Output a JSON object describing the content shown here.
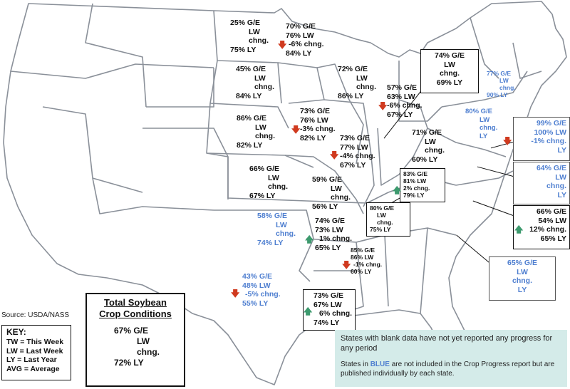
{
  "source": "Source: USDA/NASS",
  "key": {
    "title": "KEY:",
    "items": [
      "TW = This Week",
      "LW = Last Week",
      "LY = Last Year",
      "AVG = Average"
    ]
  },
  "total": {
    "title_line1": "Total Soybean",
    "title_line2": "Crop Conditions",
    "ge": "67% G/E",
    "lw": "LW",
    "chng": "chng.",
    "ly": "72% LY"
  },
  "notes": {
    "line1": "States with blank data have not yet reported any progress for any period",
    "line2_pre": "States in ",
    "line2_blue": "BLUE",
    "line2_post": " are not included in the Crop Progress report but are published individually by each state."
  },
  "colors": {
    "arrow_down": "#d03a1f",
    "arrow_up": "#3d9a6e",
    "blue_state": "#4f7fd0",
    "notes_bg": "#d4ebe9"
  },
  "states": {
    "nd": {
      "ge": "25% G/E",
      "lw": "LW",
      "chng": "chng.",
      "ly": "75% LY"
    },
    "mn": {
      "ge": "70% G/E",
      "lw": "76% LW",
      "chng": "-6% chng.",
      "ly": "84% LY",
      "arrow": "down"
    },
    "sd": {
      "ge": "45% G/E",
      "lw": "LW",
      "chng": "chng.",
      "ly": "84% LY"
    },
    "wi": {
      "ge": "72% G/E",
      "lw": "LW",
      "chng": "chng.",
      "ly": "86% LY"
    },
    "mi": {
      "ge": "57% G/E",
      "lw": "63% LW",
      "chng": "-6% chng.",
      "ly": "67% LY",
      "arrow": "down"
    },
    "ne": {
      "ge": "86% G/E",
      "lw": "LW",
      "chng": "chng.",
      "ly": "82% LY"
    },
    "ia": {
      "ge": "73% G/E",
      "lw": "76% LW",
      "chng": "-3% chng.",
      "ly": "82% LY",
      "arrow": "down"
    },
    "il": {
      "ge": "73% G/E",
      "lw": "77% LW",
      "chng": "-4% chng.",
      "ly": "67% LY",
      "arrow": "down"
    },
    "in_box": {
      "ge": "74% G/E",
      "lw": "LW",
      "chng": "chng.",
      "ly": "69% LY"
    },
    "oh": {
      "ge": "71% G/E",
      "lw": "LW",
      "chng": "chng.",
      "ly": "60% LY"
    },
    "ks": {
      "ge": "66% G/E",
      "lw": "LW",
      "chng": "chng.",
      "ly": "67% LY"
    },
    "mo": {
      "ge": "59% G/E",
      "lw": "LW",
      "chng": "chng.",
      "ly": "56% LY"
    },
    "ky": {
      "ge": "83% G/E",
      "lw": "81% LW",
      "chng": "2% chng.",
      "ly": "79% LY",
      "arrow": "up"
    },
    "tn": {
      "ge": "80% G/E",
      "lw": "LW",
      "chng": "chng.",
      "ly": "75% LY"
    },
    "ok": {
      "ge": "58% G/E",
      "lw": "LW",
      "chng": "chng.",
      "ly": "74% LY"
    },
    "ar": {
      "ge": "74% G/E",
      "lw": "73% LW",
      "chng": "1% chng.",
      "ly": "65% LY",
      "arrow": "up"
    },
    "ms": {
      "ge": "85% G/E",
      "lw": "86% LW",
      "chng": "-1% chng.",
      "ly": "60% LY",
      "arrow": "down"
    },
    "tx": {
      "ge": "43% G/E",
      "lw": "48% LW",
      "chng": "-5% chng.",
      "ly": "55% LY",
      "arrow": "down"
    },
    "la": {
      "ge": "73% G/E",
      "lw": "67% LW",
      "chng": "6% chng.",
      "ly": "74% LY",
      "arrow": "up"
    },
    "ny": {
      "ge": "77% G/E",
      "lw": "LW",
      "chng": "chng.",
      "ly": "90% LY"
    },
    "pa": {
      "ge": "80% G/E",
      "lw": "LW",
      "chng": "chng.",
      "ly": "LY"
    },
    "md": {
      "ge": "99% G/E",
      "lw": "100% LW",
      "chng": "-1% chng.",
      "ly": "LY",
      "arrow": "down"
    },
    "va": {
      "ge": "64% G/E",
      "lw": "LW",
      "chng": "chng.",
      "ly": "LY"
    },
    "nc": {
      "ge": "66% G/E",
      "lw": "54% LW",
      "chng": "12% chng.",
      "ly": "65% LY",
      "arrow": "up"
    },
    "sc": {
      "ge": "65% G/E",
      "lw": "LW",
      "chng": "chng.",
      "ly": "LY"
    }
  }
}
